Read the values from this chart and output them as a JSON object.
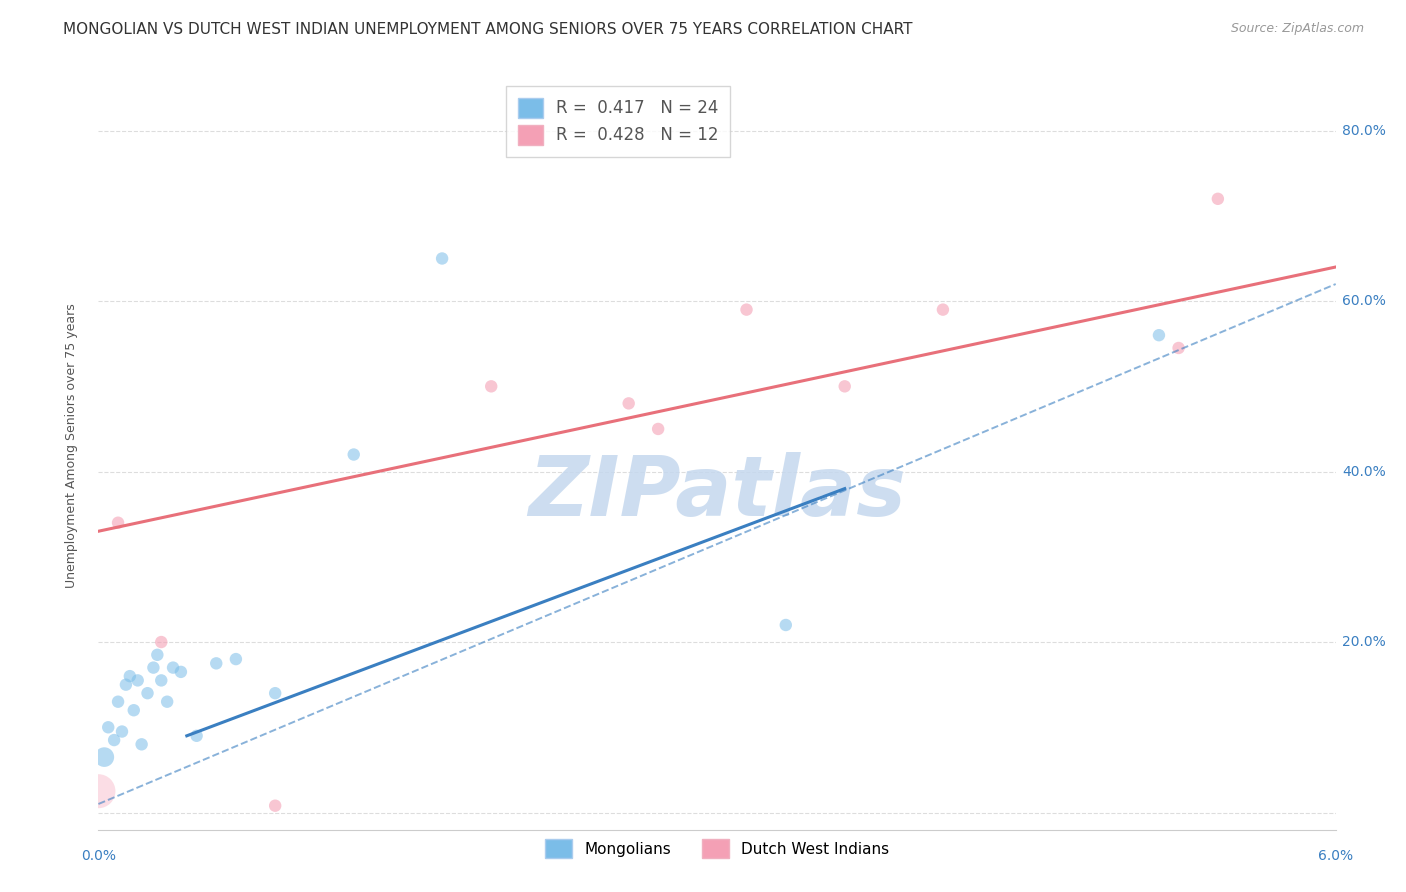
{
  "title": "MONGOLIAN VS DUTCH WEST INDIAN UNEMPLOYMENT AMONG SENIORS OVER 75 YEARS CORRELATION CHART",
  "source": "Source: ZipAtlas.com",
  "ylabel": "Unemployment Among Seniors over 75 years",
  "xlim": [
    0.0,
    0.063
  ],
  "ylim": [
    -0.02,
    0.88
  ],
  "ytick_values": [
    0.0,
    0.2,
    0.4,
    0.6,
    0.8
  ],
  "ytick_labels": [
    "",
    "20.0%",
    "40.0%",
    "60.0%",
    "80.0%"
  ],
  "mongolian_x": [
    0.0003,
    0.0005,
    0.0008,
    0.001,
    0.0012,
    0.0014,
    0.0016,
    0.0018,
    0.002,
    0.0022,
    0.0025,
    0.0028,
    0.003,
    0.0032,
    0.0035,
    0.0038,
    0.0042,
    0.005,
    0.006,
    0.007,
    0.009,
    0.013,
    0.0175,
    0.035,
    0.054
  ],
  "mongolian_y": [
    0.065,
    0.1,
    0.085,
    0.13,
    0.095,
    0.15,
    0.16,
    0.12,
    0.155,
    0.08,
    0.14,
    0.17,
    0.185,
    0.155,
    0.13,
    0.17,
    0.165,
    0.09,
    0.175,
    0.18,
    0.14,
    0.42,
    0.65,
    0.22,
    0.56
  ],
  "mongolian_sizes": [
    200,
    80,
    80,
    80,
    80,
    80,
    80,
    80,
    80,
    80,
    80,
    80,
    80,
    80,
    80,
    80,
    80,
    80,
    80,
    80,
    80,
    80,
    80,
    80,
    80
  ],
  "dutch_x": [
    0.0,
    0.001,
    0.0032,
    0.009,
    0.02,
    0.027,
    0.0285,
    0.033,
    0.038,
    0.043,
    0.055,
    0.057
  ],
  "dutch_y": [
    0.025,
    0.34,
    0.2,
    0.008,
    0.5,
    0.48,
    0.45,
    0.59,
    0.5,
    0.59,
    0.545,
    0.72
  ],
  "dutch_sizes": [
    600,
    80,
    80,
    80,
    80,
    80,
    80,
    80,
    80,
    80,
    80,
    80
  ],
  "blue_solid_line_x": [
    0.0045,
    0.038
  ],
  "blue_solid_line_y": [
    0.09,
    0.38
  ],
  "blue_dashed_line_x": [
    0.0,
    0.063
  ],
  "blue_dashed_line_y": [
    0.01,
    0.62
  ],
  "pink_solid_line_x": [
    0.0,
    0.063
  ],
  "pink_solid_line_y": [
    0.33,
    0.64
  ],
  "blue_line_color": "#3a7fc1",
  "pink_line_color": "#e8707a",
  "watermark_text": "ZIPatlas",
  "watermark_color": "#c5d8ee",
  "background_color": "#ffffff",
  "grid_color": "#dddddd",
  "title_fontsize": 11,
  "source_fontsize": 9,
  "axis_label_fontsize": 9,
  "scatter_blue": "#7bbde8",
  "scatter_pink": "#f4a0b5"
}
